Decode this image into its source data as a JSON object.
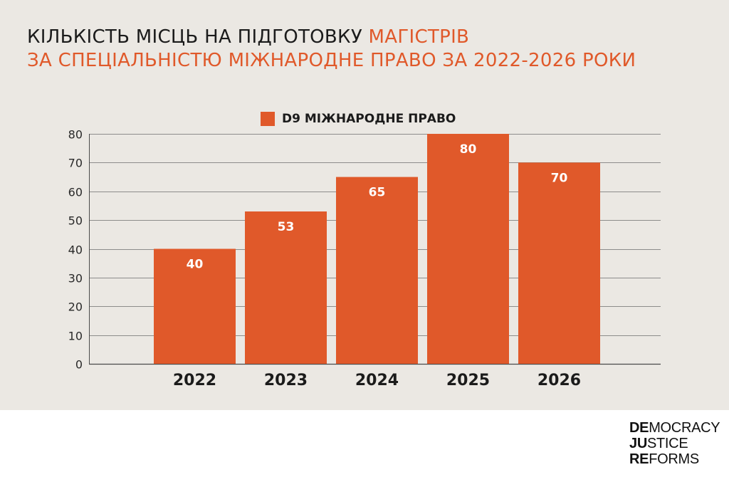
{
  "title": {
    "part1": "КІЛЬКІСТЬ МІСЦЬ НА ПІДГОТОВКУ ",
    "part1_accent": "МАГІСТРІВ",
    "line2": "ЗА СПЕЦІАЛЬНІСТЮ МІЖНАРОДНЕ ПРАВО ЗА 2022-2026 РОКИ"
  },
  "colors": {
    "accent": "#e0592a",
    "background": "#ebe8e3",
    "text": "#1b1b1b",
    "grid": "#6e6e6e"
  },
  "chart_data": {
    "type": "bar",
    "title": "КІЛЬКІСТЬ МІСЦЬ НА ПІДГОТОВКУ МАГІСТРІВ ЗА СПЕЦІАЛЬНІСТЮ МІЖНАРОДНЕ ПРАВО ЗА 2022-2026 РОКИ",
    "categories": [
      "2022",
      "2023",
      "2024",
      "2025",
      "2026"
    ],
    "series": [
      {
        "name": "D9 МІЖНАРОДНЕ ПРАВО",
        "values": [
          40,
          53,
          65,
          80,
          70
        ]
      }
    ],
    "xlabel": "",
    "ylabel": "",
    "ylim": [
      0,
      80
    ],
    "yticks": [
      0,
      10,
      20,
      30,
      40,
      50,
      60,
      70,
      80
    ],
    "grid": true,
    "legend_position": "top-center",
    "data_labels": true
  },
  "logo": {
    "line1_bold": "DE",
    "line1_rest": "MOCRACY",
    "line2_bold": "JU",
    "line2_rest": "STICE",
    "line3_bold": "RE",
    "line3_rest": "FORMS"
  }
}
